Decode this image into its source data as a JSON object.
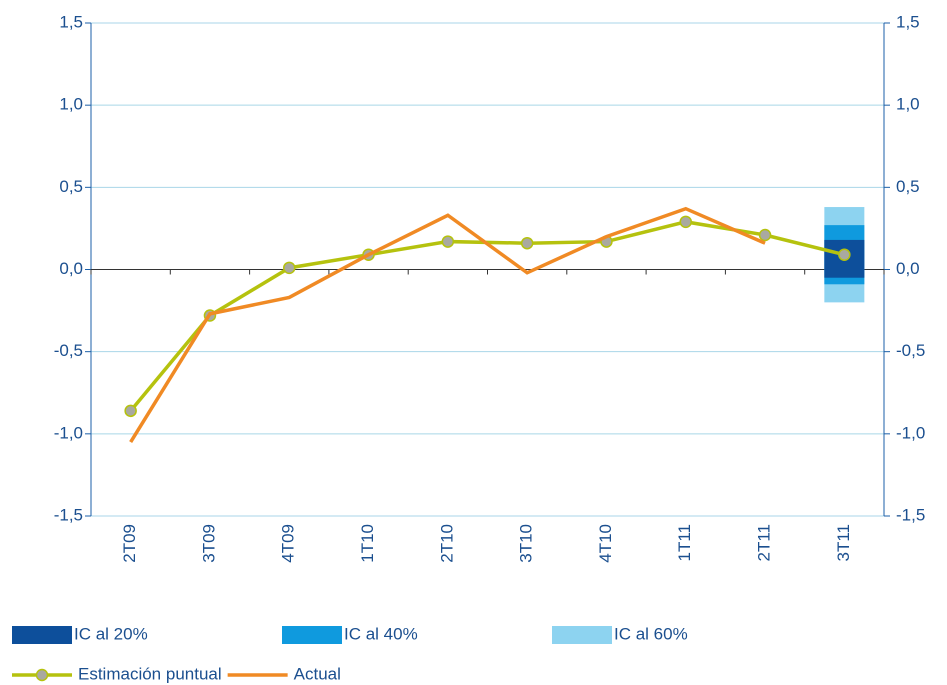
{
  "chart_data": {
    "type": "line",
    "categories": [
      "2T09",
      "3T09",
      "4T09",
      "1T10",
      "2T10",
      "3T10",
      "4T10",
      "1T11",
      "2T11",
      "3T11"
    ],
    "ylim": [
      -1.5,
      1.5
    ],
    "yticks": [
      {
        "value": -1.5,
        "label": "-1,5"
      },
      {
        "value": -1.0,
        "label": "-1,0"
      },
      {
        "value": -0.5,
        "label": "-0,5"
      },
      {
        "value": 0,
        "label": "0,0"
      },
      {
        "value": 0.5,
        "label": "0,5"
      },
      {
        "value": 1.0,
        "label": "1,0"
      },
      {
        "value": 1.5,
        "label": "1,5"
      }
    ],
    "y2lim": [
      -1.5,
      1.5
    ],
    "y2ticks": [
      {
        "value": -1.5,
        "label": "-1,5"
      },
      {
        "value": -1.0,
        "label": "-1,0"
      },
      {
        "value": -0.5,
        "label": "-0,5"
      },
      {
        "value": 0,
        "label": "0,0"
      },
      {
        "value": 0.5,
        "label": "0,5"
      },
      {
        "value": 1.0,
        "label": "1,0"
      },
      {
        "value": 1.5,
        "label": "1,5"
      }
    ],
    "grid": true,
    "intervals": [
      {
        "name": "IC al 60%",
        "color": "#8dd3f0",
        "low": [
          null,
          null,
          null,
          null,
          null,
          null,
          null,
          null,
          null,
          -0.2
        ],
        "high": [
          null,
          null,
          null,
          null,
          null,
          null,
          null,
          null,
          null,
          0.38
        ]
      },
      {
        "name": "IC al 40%",
        "color": "#0f9ade",
        "low": [
          null,
          null,
          null,
          null,
          null,
          null,
          null,
          null,
          null,
          -0.09
        ],
        "high": [
          null,
          null,
          null,
          null,
          null,
          null,
          null,
          null,
          null,
          0.27
        ]
      },
      {
        "name": "IC al 20%",
        "color": "#0d4f9b",
        "low": [
          null,
          null,
          null,
          null,
          null,
          null,
          null,
          null,
          null,
          -0.05
        ],
        "high": [
          null,
          null,
          null,
          null,
          null,
          null,
          null,
          null,
          null,
          0.18
        ]
      }
    ],
    "series": [
      {
        "name": "Estimación puntual",
        "color": "#b5c20e",
        "marker_color": "#a9a9a0",
        "values": [
          -0.86,
          -0.28,
          0.01,
          0.09,
          0.17,
          0.16,
          0.17,
          0.29,
          0.21,
          0.09
        ]
      },
      {
        "name": "Actual",
        "color": "#f08a24",
        "values": [
          -1.05,
          -0.27,
          -0.17,
          0.09,
          0.33,
          -0.02,
          0.2,
          0.37,
          0.16,
          null
        ]
      }
    ]
  }
}
